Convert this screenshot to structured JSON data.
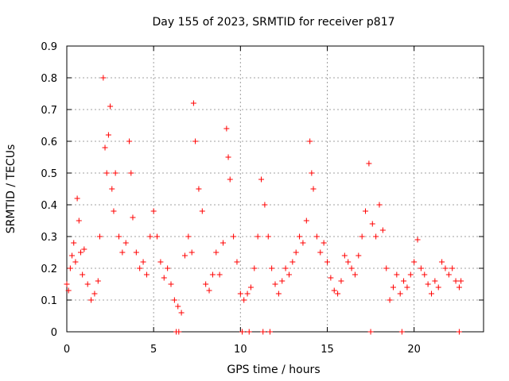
{
  "chart_data": {
    "type": "scatter",
    "title": "Day 155 of 2023, SRMTID for receiver p817",
    "xlabel": "GPS time / hours",
    "ylabel": "SRMTID / TECUs",
    "xlim": [
      0,
      24
    ],
    "ylim": [
      0,
      0.9
    ],
    "x_ticks": [
      "0",
      "5",
      "10",
      "15",
      "20"
    ],
    "y_ticks": [
      "0",
      "0.1",
      "0.2",
      "0.3",
      "0.4",
      "0.5",
      "0.6",
      "0.7",
      "0.8",
      "0.9"
    ],
    "grid": true,
    "marker": "+",
    "series": [
      {
        "name": "SRMTID",
        "color": "#ff0000",
        "points": [
          [
            0.0,
            0.15
          ],
          [
            0.1,
            0.13
          ],
          [
            0.2,
            0.2
          ],
          [
            0.3,
            0.24
          ],
          [
            0.4,
            0.28
          ],
          [
            0.5,
            0.22
          ],
          [
            0.6,
            0.42
          ],
          [
            0.7,
            0.35
          ],
          [
            0.8,
            0.25
          ],
          [
            0.9,
            0.18
          ],
          [
            1.0,
            0.26
          ],
          [
            1.2,
            0.15
          ],
          [
            1.4,
            0.1
          ],
          [
            1.6,
            0.12
          ],
          [
            1.8,
            0.16
          ],
          [
            1.9,
            0.3
          ],
          [
            2.1,
            0.8
          ],
          [
            2.2,
            0.58
          ],
          [
            2.3,
            0.5
          ],
          [
            2.4,
            0.62
          ],
          [
            2.5,
            0.71
          ],
          [
            2.6,
            0.45
          ],
          [
            2.7,
            0.38
          ],
          [
            2.8,
            0.5
          ],
          [
            3.0,
            0.3
          ],
          [
            3.2,
            0.25
          ],
          [
            3.4,
            0.28
          ],
          [
            3.6,
            0.6
          ],
          [
            3.7,
            0.5
          ],
          [
            3.8,
            0.36
          ],
          [
            4.0,
            0.25
          ],
          [
            4.2,
            0.2
          ],
          [
            4.4,
            0.22
          ],
          [
            4.6,
            0.18
          ],
          [
            4.8,
            0.3
          ],
          [
            5.0,
            0.38
          ],
          [
            5.2,
            0.3
          ],
          [
            5.4,
            0.22
          ],
          [
            5.6,
            0.17
          ],
          [
            5.8,
            0.2
          ],
          [
            6.0,
            0.15
          ],
          [
            6.2,
            0.1
          ],
          [
            6.4,
            0.08
          ],
          [
            6.6,
            0.06
          ],
          [
            6.8,
            0.24
          ],
          [
            7.0,
            0.3
          ],
          [
            7.2,
            0.25
          ],
          [
            7.3,
            0.72
          ],
          [
            7.4,
            0.6
          ],
          [
            7.6,
            0.45
          ],
          [
            7.8,
            0.38
          ],
          [
            8.0,
            0.15
          ],
          [
            8.2,
            0.13
          ],
          [
            8.4,
            0.18
          ],
          [
            8.6,
            0.25
          ],
          [
            8.8,
            0.18
          ],
          [
            9.0,
            0.28
          ],
          [
            9.2,
            0.64
          ],
          [
            9.3,
            0.55
          ],
          [
            9.4,
            0.48
          ],
          [
            9.6,
            0.3
          ],
          [
            9.8,
            0.22
          ],
          [
            10.0,
            0.12
          ],
          [
            10.2,
            0.1
          ],
          [
            10.4,
            0.12
          ],
          [
            10.6,
            0.14
          ],
          [
            10.8,
            0.2
          ],
          [
            11.0,
            0.3
          ],
          [
            11.2,
            0.48
          ],
          [
            11.4,
            0.4
          ],
          [
            11.6,
            0.3
          ],
          [
            11.8,
            0.2
          ],
          [
            12.0,
            0.15
          ],
          [
            12.2,
            0.12
          ],
          [
            12.4,
            0.16
          ],
          [
            12.6,
            0.2
          ],
          [
            12.8,
            0.18
          ],
          [
            13.0,
            0.22
          ],
          [
            13.2,
            0.25
          ],
          [
            13.4,
            0.3
          ],
          [
            13.6,
            0.28
          ],
          [
            13.8,
            0.35
          ],
          [
            14.0,
            0.6
          ],
          [
            14.1,
            0.5
          ],
          [
            14.2,
            0.45
          ],
          [
            14.4,
            0.3
          ],
          [
            14.6,
            0.25
          ],
          [
            14.8,
            0.28
          ],
          [
            15.0,
            0.22
          ],
          [
            15.2,
            0.17
          ],
          [
            15.4,
            0.13
          ],
          [
            15.6,
            0.12
          ],
          [
            15.8,
            0.16
          ],
          [
            16.0,
            0.24
          ],
          [
            16.2,
            0.22
          ],
          [
            16.4,
            0.2
          ],
          [
            16.6,
            0.18
          ],
          [
            16.8,
            0.24
          ],
          [
            17.0,
            0.3
          ],
          [
            17.2,
            0.38
          ],
          [
            17.4,
            0.53
          ],
          [
            17.6,
            0.34
          ],
          [
            17.8,
            0.3
          ],
          [
            18.0,
            0.4
          ],
          [
            18.2,
            0.32
          ],
          [
            18.4,
            0.2
          ],
          [
            18.6,
            0.1
          ],
          [
            18.8,
            0.14
          ],
          [
            19.0,
            0.18
          ],
          [
            19.2,
            0.12
          ],
          [
            19.4,
            0.16
          ],
          [
            19.6,
            0.14
          ],
          [
            19.8,
            0.18
          ],
          [
            20.0,
            0.22
          ],
          [
            20.2,
            0.29
          ],
          [
            20.4,
            0.2
          ],
          [
            20.6,
            0.18
          ],
          [
            20.8,
            0.15
          ],
          [
            21.0,
            0.12
          ],
          [
            21.2,
            0.16
          ],
          [
            21.4,
            0.14
          ],
          [
            21.6,
            0.22
          ],
          [
            21.8,
            0.2
          ],
          [
            22.0,
            0.18
          ],
          [
            22.2,
            0.2
          ],
          [
            22.4,
            0.16
          ],
          [
            22.6,
            0.14
          ],
          [
            22.7,
            0.16
          ]
        ]
      }
    ],
    "zero_points_x": [
      6.3,
      6.45,
      10.1,
      10.5,
      11.3,
      11.7,
      17.5,
      19.3,
      22.6
    ]
  }
}
